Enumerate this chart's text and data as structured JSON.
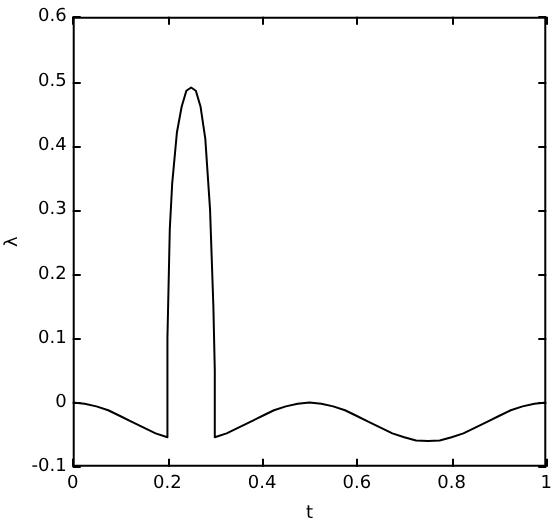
{
  "chart_data": {
    "type": "line",
    "xlabel": "t",
    "ylabel": "λ",
    "series": [
      {
        "color": "#000000",
        "x": [
          0,
          0.025,
          0.05,
          0.075,
          0.1,
          0.125,
          0.15,
          0.175,
          0.2,
          0.2,
          0.205,
          0.21,
          0.22,
          0.23,
          0.24,
          0.25,
          0.26,
          0.27,
          0.28,
          0.29,
          0.297,
          0.3,
          0.3,
          0.325,
          0.35,
          0.375,
          0.4,
          0.425,
          0.45,
          0.475,
          0.5,
          0.525,
          0.55,
          0.575,
          0.6,
          0.625,
          0.65,
          0.675,
          0.7,
          0.725,
          0.75,
          0.775,
          0.8,
          0.825,
          0.85,
          0.875,
          0.9,
          0.925,
          0.95,
          0.975,
          1
        ],
        "values": [
          0,
          -0.002,
          -0.006,
          -0.012,
          -0.021,
          -0.03,
          -0.039,
          -0.048,
          -0.054,
          0.1,
          0.27,
          0.34,
          0.42,
          0.46,
          0.485,
          0.49,
          0.485,
          0.46,
          0.41,
          0.3,
          0.15,
          0.05,
          -0.054,
          -0.048,
          -0.039,
          -0.03,
          -0.021,
          -0.012,
          -0.006,
          -0.002,
          0,
          -0.002,
          -0.006,
          -0.012,
          -0.021,
          -0.03,
          -0.039,
          -0.048,
          -0.054,
          -0.059,
          -0.06,
          -0.059,
          -0.054,
          -0.048,
          -0.039,
          -0.03,
          -0.021,
          -0.012,
          -0.006,
          -0.002,
          0
        ]
      }
    ],
    "xlim": [
      0,
      1
    ],
    "xticks": [
      0,
      0.2,
      0.4,
      0.6,
      0.8,
      1
    ],
    "ylim": [
      -0.1,
      0.6
    ],
    "yticks": [
      -0.1,
      0,
      0.1,
      0.2,
      0.3,
      0.4,
      0.5,
      0.6
    ],
    "grid": false,
    "legend": false,
    "marker": "none",
    "line_style": "solid"
  }
}
